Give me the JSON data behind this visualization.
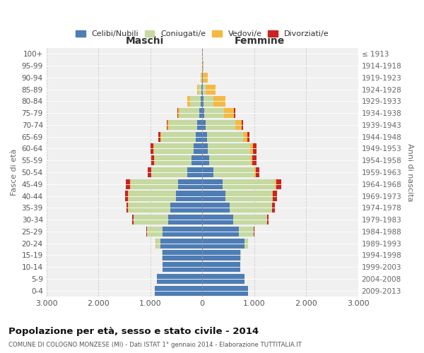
{
  "age_groups": [
    "0-4",
    "5-9",
    "10-14",
    "15-19",
    "20-24",
    "25-29",
    "30-34",
    "35-39",
    "40-44",
    "45-49",
    "50-54",
    "55-59",
    "60-64",
    "65-69",
    "70-74",
    "75-79",
    "80-84",
    "85-89",
    "90-94",
    "95-99",
    "100+"
  ],
  "birth_years": [
    "2009-2013",
    "2004-2008",
    "1999-2003",
    "1994-1998",
    "1989-1993",
    "1984-1988",
    "1979-1983",
    "1974-1978",
    "1969-1973",
    "1964-1968",
    "1959-1963",
    "1954-1958",
    "1949-1953",
    "1944-1948",
    "1939-1943",
    "1934-1938",
    "1929-1933",
    "1924-1928",
    "1919-1923",
    "1914-1918",
    "≤ 1913"
  ],
  "colors": {
    "celibi": "#4e7db5",
    "coniugati": "#c5d9a0",
    "vedovi": "#f5b942",
    "divorziati": "#cc2222",
    "background": "#f0f0f0",
    "grid_h": "#ffffff",
    "grid_v": "#cccccc"
  },
  "maschi": {
    "celibi": [
      920,
      870,
      760,
      760,
      810,
      760,
      660,
      610,
      510,
      470,
      290,
      210,
      170,
      130,
      100,
      60,
      30,
      12,
      6,
      3,
      2
    ],
    "coniugati": [
      0,
      0,
      5,
      20,
      80,
      310,
      660,
      810,
      910,
      910,
      690,
      710,
      760,
      660,
      540,
      380,
      210,
      65,
      12,
      3,
      0
    ],
    "vedovi": [
      0,
      0,
      0,
      0,
      5,
      0,
      0,
      5,
      5,
      5,
      5,
      10,
      15,
      20,
      25,
      22,
      55,
      22,
      6,
      0,
      0
    ],
    "divorziati": [
      0,
      0,
      0,
      0,
      0,
      5,
      25,
      40,
      60,
      85,
      65,
      55,
      50,
      32,
      22,
      22,
      0,
      0,
      0,
      0,
      0
    ]
  },
  "femmine": {
    "celibi": [
      880,
      820,
      730,
      730,
      810,
      710,
      590,
      530,
      440,
      390,
      210,
      140,
      110,
      90,
      70,
      40,
      25,
      12,
      5,
      3,
      2
    ],
    "coniugati": [
      0,
      0,
      5,
      15,
      70,
      285,
      660,
      810,
      910,
      1010,
      790,
      790,
      810,
      700,
      570,
      380,
      190,
      60,
      10,
      3,
      0
    ],
    "vedovi": [
      0,
      0,
      0,
      0,
      0,
      0,
      5,
      5,
      10,
      20,
      25,
      40,
      60,
      80,
      120,
      185,
      225,
      185,
      85,
      22,
      5
    ],
    "divorziati": [
      0,
      0,
      0,
      0,
      0,
      5,
      20,
      50,
      80,
      105,
      80,
      70,
      65,
      40,
      30,
      25,
      0,
      0,
      0,
      0,
      0
    ]
  },
  "xlim": 3000,
  "xticks": [
    -3000,
    -2000,
    -1000,
    0,
    1000,
    2000,
    3000
  ],
  "xticklabels": [
    "3.000",
    "2.000",
    "1.000",
    "0",
    "1.000",
    "2.000",
    "3.000"
  ],
  "title": "Popolazione per età, sesso e stato civile - 2014",
  "subtitle": "COMUNE DI COLOGNO MONZESE (MI) - Dati ISTAT 1° gennaio 2014 - Elaborazione TUTTITALIA.IT",
  "ylabel_left": "Fasce di età",
  "ylabel_right": "Anni di nascita",
  "label_maschi": "Maschi",
  "label_femmine": "Femmine",
  "legend_labels": [
    "Celibi/Nubili",
    "Coniugati/e",
    "Vedovi/e",
    "Divorziati/e"
  ]
}
